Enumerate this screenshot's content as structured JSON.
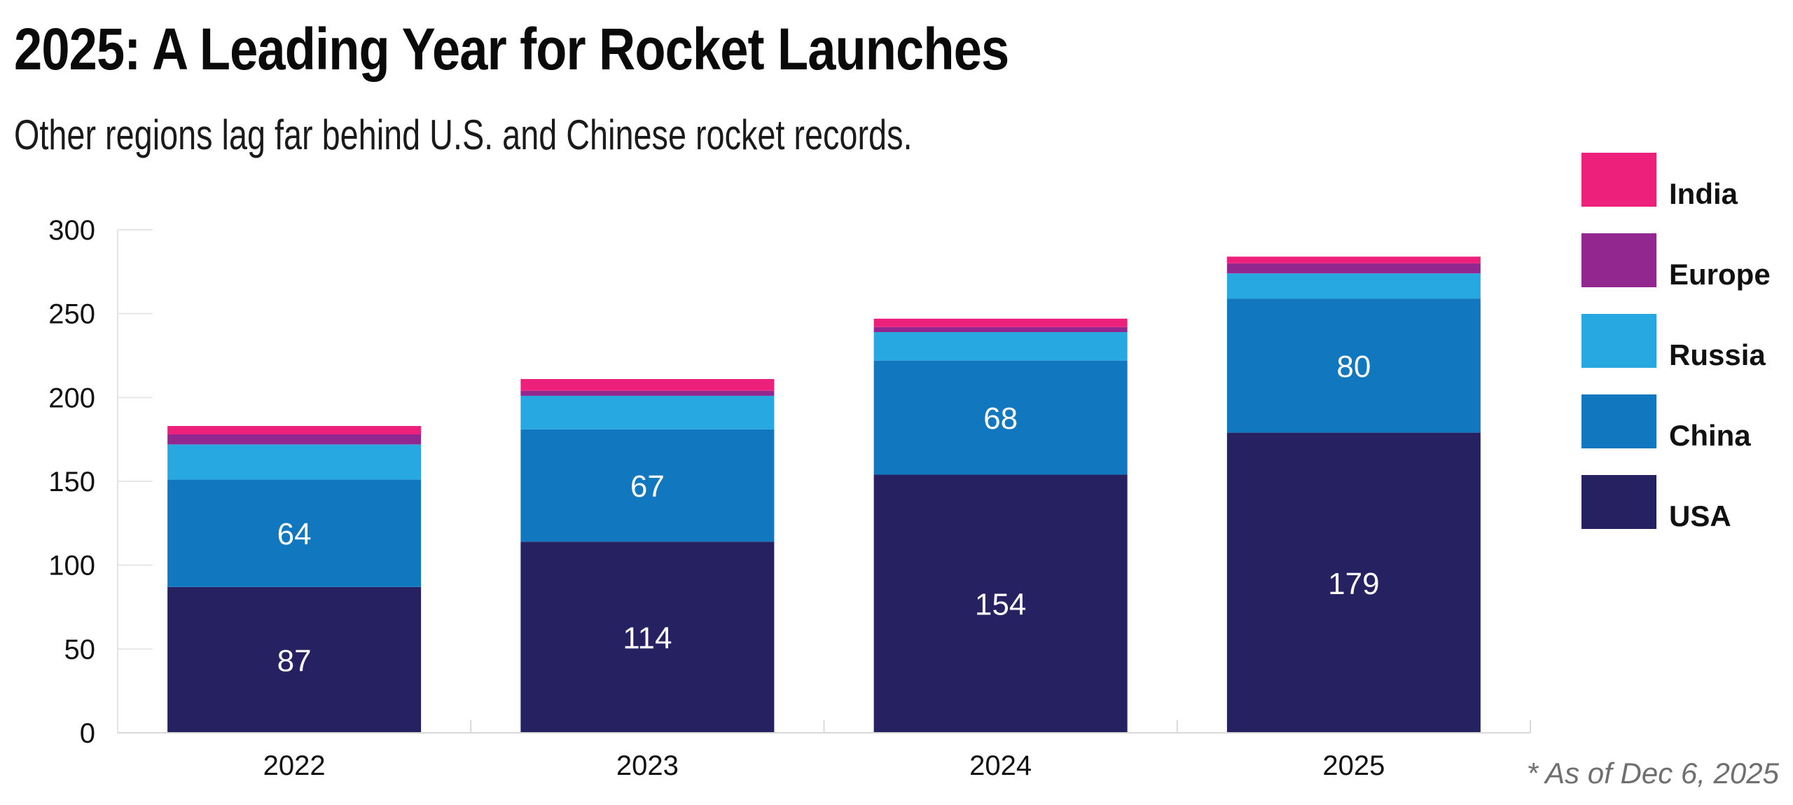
{
  "chart_data": {
    "type": "bar",
    "stacked": true,
    "title": "2025: A Leading Year for Rocket Launches",
    "subtitle": "Other regions lag far behind U.S. and Chinese rocket records.",
    "footnote": "*  As of Dec 6, 2025",
    "xlabel": "",
    "ylabel": "",
    "ylim": [
      0,
      300
    ],
    "yticks": [
      0,
      50,
      100,
      150,
      200,
      250,
      300
    ],
    "categories": [
      "2022",
      "2023",
      "2024",
      "2025"
    ],
    "series": [
      {
        "name": "USA",
        "color": "#262262",
        "values": [
          87,
          114,
          154,
          179
        ],
        "labeled": true
      },
      {
        "name": "China",
        "color": "#1177bf",
        "values": [
          64,
          67,
          68,
          80
        ],
        "labeled": true
      },
      {
        "name": "Russia",
        "color": "#27a8e0",
        "values": [
          21,
          20,
          17,
          15
        ],
        "labeled": false
      },
      {
        "name": "Europe",
        "color": "#92278f",
        "values": [
          6,
          3,
          3,
          6
        ],
        "labeled": false
      },
      {
        "name": "India",
        "color": "#ed217c",
        "values": [
          5,
          7,
          5,
          4
        ],
        "labeled": false
      }
    ],
    "legend_order": [
      "India",
      "Europe",
      "Russia",
      "China",
      "USA"
    ],
    "legend_position": "right"
  }
}
